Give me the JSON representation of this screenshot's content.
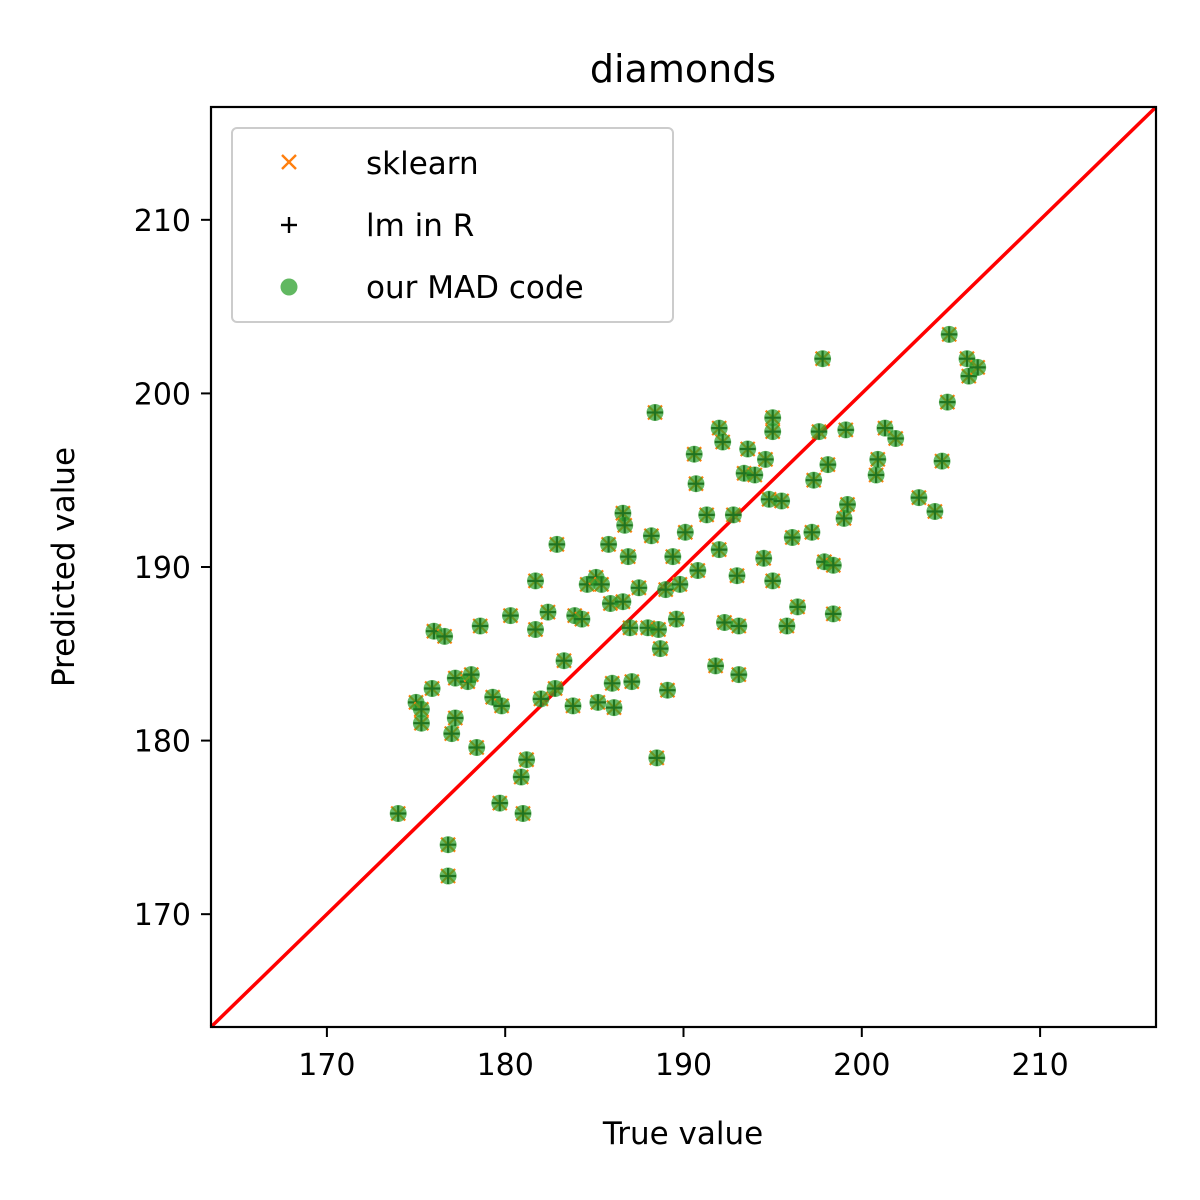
{
  "chart_data": {
    "type": "scatter",
    "title": "diamonds",
    "xlabel": "True value",
    "ylabel": "Predicted value",
    "xlim": [
      163.5,
      216.5
    ],
    "ylim": [
      163.5,
      216.5
    ],
    "xticks": [
      170,
      180,
      190,
      200,
      210
    ],
    "yticks": [
      170,
      180,
      190,
      200,
      210
    ],
    "xtick_labels": [
      "170",
      "180",
      "190",
      "200",
      "210"
    ],
    "ytick_labels": [
      "170",
      "180",
      "190",
      "200",
      "210"
    ],
    "grid": false,
    "legend_position": "top-left",
    "reference_line": {
      "type": "identity",
      "color": "#ff0000"
    },
    "series": [
      {
        "name": "sklearn",
        "marker": "x",
        "color": "#ff7f0e"
      },
      {
        "name": "lm in R",
        "marker": "+",
        "color": "#000000"
      },
      {
        "name": "our MAD code",
        "marker": "circle",
        "color": "#2ca02c"
      }
    ],
    "points": [
      [
        174.0,
        175.8
      ],
      [
        175.0,
        182.2
      ],
      [
        175.3,
        181.0
      ],
      [
        175.3,
        181.8
      ],
      [
        175.9,
        183.0
      ],
      [
        176.0,
        186.3
      ],
      [
        176.6,
        186.0
      ],
      [
        176.8,
        174.0
      ],
      [
        176.8,
        172.2
      ],
      [
        177.0,
        180.4
      ],
      [
        177.2,
        181.3
      ],
      [
        177.2,
        183.6
      ],
      [
        177.9,
        183.4
      ],
      [
        178.1,
        183.8
      ],
      [
        178.4,
        179.6
      ],
      [
        178.6,
        186.6
      ],
      [
        179.3,
        182.5
      ],
      [
        179.7,
        176.4
      ],
      [
        179.8,
        182.0
      ],
      [
        180.3,
        187.2
      ],
      [
        180.9,
        177.9
      ],
      [
        181.0,
        175.8
      ],
      [
        181.2,
        178.9
      ],
      [
        181.7,
        186.4
      ],
      [
        181.7,
        189.2
      ],
      [
        182.0,
        182.4
      ],
      [
        182.4,
        187.4
      ],
      [
        182.8,
        183.0
      ],
      [
        182.9,
        191.3
      ],
      [
        183.3,
        184.6
      ],
      [
        183.8,
        182.0
      ],
      [
        183.9,
        187.2
      ],
      [
        184.3,
        187.0
      ],
      [
        184.6,
        189.0
      ],
      [
        185.1,
        189.4
      ],
      [
        185.2,
        182.2
      ],
      [
        185.4,
        189.0
      ],
      [
        185.8,
        191.3
      ],
      [
        185.9,
        187.9
      ],
      [
        186.0,
        183.3
      ],
      [
        186.1,
        181.9
      ],
      [
        186.6,
        193.1
      ],
      [
        186.6,
        188.0
      ],
      [
        186.7,
        192.4
      ],
      [
        186.9,
        190.6
      ],
      [
        187.0,
        186.5
      ],
      [
        187.1,
        183.4
      ],
      [
        187.5,
        188.8
      ],
      [
        188.0,
        186.5
      ],
      [
        188.2,
        191.8
      ],
      [
        188.4,
        198.9
      ],
      [
        188.5,
        179.0
      ],
      [
        188.6,
        186.4
      ],
      [
        188.7,
        185.3
      ],
      [
        189.0,
        188.7
      ],
      [
        189.1,
        182.9
      ],
      [
        189.4,
        190.6
      ],
      [
        189.6,
        187.0
      ],
      [
        189.8,
        189.0
      ],
      [
        190.1,
        192.0
      ],
      [
        190.6,
        196.5
      ],
      [
        190.7,
        194.8
      ],
      [
        190.8,
        189.8
      ],
      [
        191.3,
        193.0
      ],
      [
        191.8,
        184.3
      ],
      [
        192.0,
        198.0
      ],
      [
        192.0,
        191.0
      ],
      [
        192.2,
        197.2
      ],
      [
        192.3,
        186.8
      ],
      [
        192.8,
        193.0
      ],
      [
        193.0,
        189.5
      ],
      [
        193.1,
        186.6
      ],
      [
        193.1,
        183.8
      ],
      [
        193.4,
        195.4
      ],
      [
        193.6,
        196.8
      ],
      [
        194.0,
        195.3
      ],
      [
        194.5,
        190.5
      ],
      [
        194.6,
        196.2
      ],
      [
        194.8,
        193.9
      ],
      [
        195.0,
        189.2
      ],
      [
        195.0,
        198.6
      ],
      [
        195.0,
        197.8
      ],
      [
        195.5,
        193.8
      ],
      [
        195.8,
        186.6
      ],
      [
        196.1,
        191.7
      ],
      [
        196.4,
        187.7
      ],
      [
        197.2,
        192.0
      ],
      [
        197.3,
        195.0
      ],
      [
        197.6,
        197.8
      ],
      [
        197.8,
        202.0
      ],
      [
        197.9,
        190.3
      ],
      [
        198.1,
        195.9
      ],
      [
        198.4,
        190.1
      ],
      [
        198.4,
        187.3
      ],
      [
        199.0,
        192.8
      ],
      [
        199.1,
        197.9
      ],
      [
        199.2,
        193.6
      ],
      [
        200.8,
        195.3
      ],
      [
        200.9,
        196.2
      ],
      [
        201.3,
        198.0
      ],
      [
        201.9,
        197.4
      ],
      [
        203.2,
        194.0
      ],
      [
        204.1,
        193.2
      ],
      [
        204.5,
        196.1
      ],
      [
        204.8,
        199.5
      ],
      [
        204.9,
        203.4
      ],
      [
        205.9,
        202.0
      ],
      [
        206.0,
        201.0
      ],
      [
        206.5,
        201.5
      ]
    ]
  }
}
